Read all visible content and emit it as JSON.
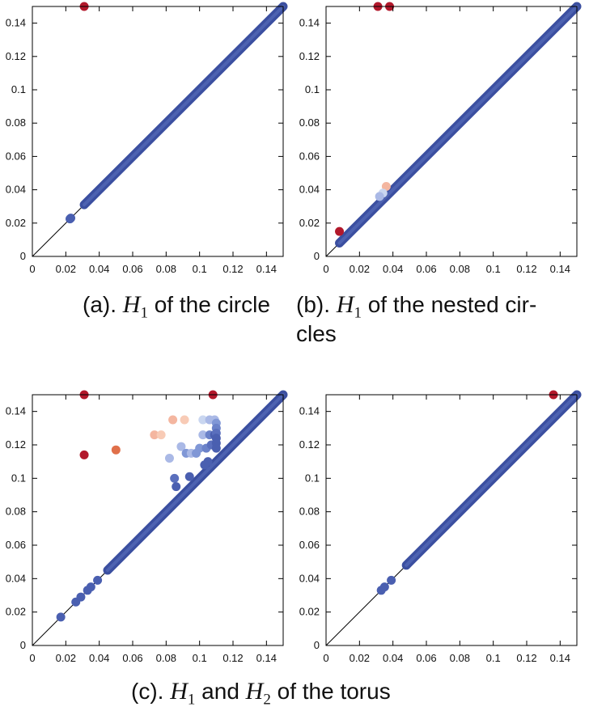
{
  "captions": {
    "a": {
      "prefix": "(a). ",
      "var": "H",
      "sub": "1",
      "text": " of the circle"
    },
    "b": {
      "prefix": "(b). ",
      "var": "H",
      "sub": "1",
      "text": " of the nested cir-",
      "line2": "cles"
    },
    "c": {
      "prefix": "(c). ",
      "var1": "H",
      "sub1": "1",
      "mid": " and ",
      "var2": "H",
      "sub2": "2",
      "text": " of the torus"
    }
  },
  "chart_data": [
    {
      "id": "a",
      "type": "scatter",
      "title": "",
      "xlabel": "",
      "ylabel": "",
      "xlim": [
        0,
        0.15
      ],
      "ylim": [
        0,
        0.15
      ],
      "xticks": [
        "0",
        "0.02",
        "0.04",
        "0.06",
        "0.08",
        "0.1",
        "0.12",
        "0.14"
      ],
      "yticks": [
        "0",
        "0.02",
        "0.04",
        "0.06",
        "0.08",
        "0.1",
        "0.12",
        "0.14"
      ],
      "diagonal": true,
      "diagonal_band": {
        "from": 0.031,
        "to": 0.15,
        "color": "#3b4fa0"
      },
      "points": [
        {
          "x": 0.023,
          "y": 0.023,
          "color": "#4a5fb0"
        },
        {
          "x": 0.0225,
          "y": 0.0225,
          "color": "#4a5fb0"
        },
        {
          "x": 0.031,
          "y": 0.15,
          "color": "#b2182b"
        }
      ]
    },
    {
      "id": "b",
      "type": "scatter",
      "title": "",
      "xlabel": "",
      "ylabel": "",
      "xlim": [
        0,
        0.15
      ],
      "ylim": [
        0,
        0.15
      ],
      "xticks": [
        "0",
        "0.02",
        "0.04",
        "0.06",
        "0.08",
        "0.1",
        "0.12",
        "0.14"
      ],
      "yticks": [
        "0",
        "0.02",
        "0.04",
        "0.06",
        "0.08",
        "0.1",
        "0.12",
        "0.14"
      ],
      "diagonal": true,
      "diagonal_band": {
        "from": 0.008,
        "to": 0.15,
        "color": "#3b4fa0"
      },
      "points": [
        {
          "x": 0.031,
          "y": 0.15,
          "color": "#b2182b"
        },
        {
          "x": 0.038,
          "y": 0.15,
          "color": "#b2182b"
        },
        {
          "x": 0.008,
          "y": 0.015,
          "color": "#b2182b"
        },
        {
          "x": 0.036,
          "y": 0.042,
          "color": "#f4b6a0"
        },
        {
          "x": 0.034,
          "y": 0.038,
          "color": "#c9d6f0"
        },
        {
          "x": 0.032,
          "y": 0.036,
          "color": "#aab9e6"
        }
      ]
    },
    {
      "id": "c",
      "type": "scatter",
      "title": "",
      "xlabel": "",
      "ylabel": "",
      "xlim": [
        0,
        0.15
      ],
      "ylim": [
        0,
        0.15
      ],
      "xticks": [
        "0",
        "0.02",
        "0.04",
        "0.06",
        "0.08",
        "0.1",
        "0.12",
        "0.14"
      ],
      "yticks": [
        "0",
        "0.02",
        "0.04",
        "0.06",
        "0.08",
        "0.1",
        "0.12",
        "0.14"
      ],
      "diagonal": true,
      "diagonal_band": {
        "from": 0.045,
        "to": 0.15,
        "color": "#3b4fa0"
      },
      "points": [
        {
          "x": 0.017,
          "y": 0.017,
          "color": "#4a5fb0"
        },
        {
          "x": 0.026,
          "y": 0.026,
          "color": "#4a5fb0"
        },
        {
          "x": 0.029,
          "y": 0.029,
          "color": "#4a5fb0"
        },
        {
          "x": 0.033,
          "y": 0.033,
          "color": "#4a5fb0"
        },
        {
          "x": 0.035,
          "y": 0.035,
          "color": "#4a5fb0"
        },
        {
          "x": 0.039,
          "y": 0.039,
          "color": "#4a5fb0"
        },
        {
          "x": 0.031,
          "y": 0.15,
          "color": "#b2182b"
        },
        {
          "x": 0.108,
          "y": 0.15,
          "color": "#b2182b"
        },
        {
          "x": 0.031,
          "y": 0.114,
          "color": "#b2182b"
        },
        {
          "x": 0.05,
          "y": 0.117,
          "color": "#e0704a"
        },
        {
          "x": 0.073,
          "y": 0.126,
          "color": "#f4b6a0"
        },
        {
          "x": 0.077,
          "y": 0.126,
          "color": "#f8cbb6"
        },
        {
          "x": 0.084,
          "y": 0.135,
          "color": "#f4b6a0"
        },
        {
          "x": 0.091,
          "y": 0.135,
          "color": "#f8cbb6"
        },
        {
          "x": 0.102,
          "y": 0.135,
          "color": "#c9d6f0"
        },
        {
          "x": 0.106,
          "y": 0.135,
          "color": "#aab9e6"
        },
        {
          "x": 0.109,
          "y": 0.135,
          "color": "#aab9e6"
        },
        {
          "x": 0.082,
          "y": 0.112,
          "color": "#aab9e6"
        },
        {
          "x": 0.085,
          "y": 0.1,
          "color": "#5a6fbd"
        },
        {
          "x": 0.086,
          "y": 0.095,
          "color": "#4a5fb0"
        },
        {
          "x": 0.089,
          "y": 0.119,
          "color": "#aab9e6"
        },
        {
          "x": 0.092,
          "y": 0.115,
          "color": "#8097d6"
        },
        {
          "x": 0.094,
          "y": 0.101,
          "color": "#4a5fb0"
        },
        {
          "x": 0.095,
          "y": 0.115,
          "color": "#aab9e6"
        },
        {
          "x": 0.098,
          "y": 0.115,
          "color": "#8097d6"
        },
        {
          "x": 0.1,
          "y": 0.118,
          "color": "#8097d6"
        },
        {
          "x": 0.102,
          "y": 0.126,
          "color": "#aab9e6"
        },
        {
          "x": 0.104,
          "y": 0.118,
          "color": "#6b82c9"
        },
        {
          "x": 0.106,
          "y": 0.126,
          "color": "#6b82c9"
        },
        {
          "x": 0.107,
          "y": 0.12,
          "color": "#5a6fbd"
        },
        {
          "x": 0.109,
          "y": 0.126,
          "color": "#4a5fb0"
        },
        {
          "x": 0.11,
          "y": 0.133,
          "color": "#8097d6"
        },
        {
          "x": 0.11,
          "y": 0.13,
          "color": "#6b82c9"
        },
        {
          "x": 0.11,
          "y": 0.127,
          "color": "#5a6fbd"
        },
        {
          "x": 0.11,
          "y": 0.124,
          "color": "#4a5fb0"
        },
        {
          "x": 0.11,
          "y": 0.121,
          "color": "#4a5fb0"
        },
        {
          "x": 0.11,
          "y": 0.118,
          "color": "#4a5fb0"
        },
        {
          "x": 0.105,
          "y": 0.11,
          "color": "#4a5fb0"
        },
        {
          "x": 0.103,
          "y": 0.108,
          "color": "#4a5fb0"
        }
      ]
    },
    {
      "id": "d",
      "type": "scatter",
      "title": "",
      "xlabel": "",
      "ylabel": "",
      "xlim": [
        0,
        0.15
      ],
      "ylim": [
        0,
        0.15
      ],
      "xticks": [
        "0",
        "0.02",
        "0.04",
        "0.06",
        "0.08",
        "0.1",
        "0.12",
        "0.14"
      ],
      "yticks": [
        "0",
        "0.02",
        "0.04",
        "0.06",
        "0.08",
        "0.1",
        "0.12",
        "0.14"
      ],
      "diagonal": true,
      "diagonal_band": {
        "from": 0.048,
        "to": 0.15,
        "color": "#3b4fa0"
      },
      "points": [
        {
          "x": 0.033,
          "y": 0.033,
          "color": "#4a5fb0"
        },
        {
          "x": 0.035,
          "y": 0.035,
          "color": "#4a5fb0"
        },
        {
          "x": 0.039,
          "y": 0.039,
          "color": "#4a5fb0"
        },
        {
          "x": 0.136,
          "y": 0.15,
          "color": "#b2182b"
        }
      ]
    }
  ]
}
